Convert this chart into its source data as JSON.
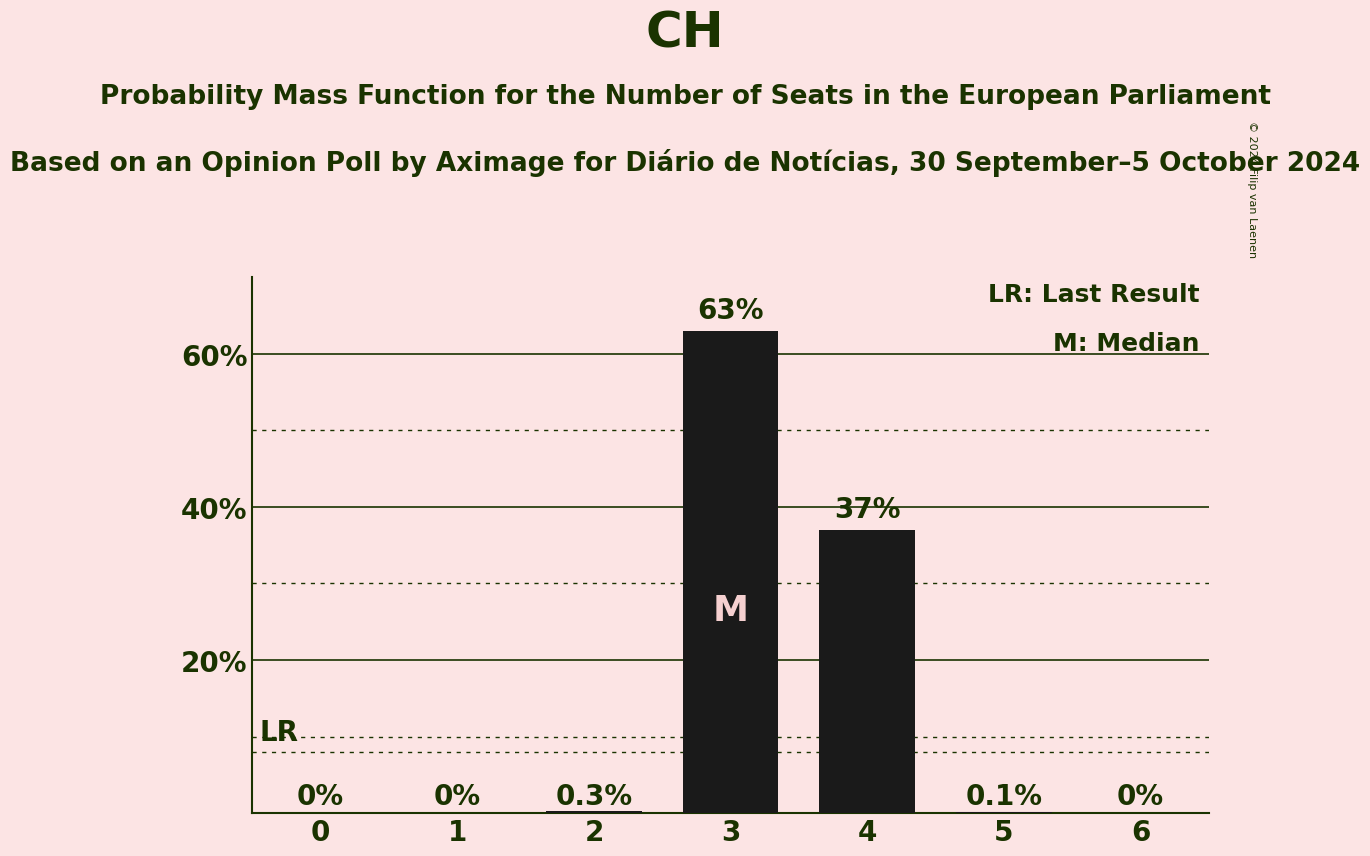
{
  "title": "CH",
  "subtitle1": "Probability Mass Function for the Number of Seats in the European Parliament",
  "subtitle2": "Based on an Opinion Poll by Aximage for Diário de Notícias, 30 September–5 October 2024",
  "copyright": "© 2024 Filip van Laenen",
  "categories": [
    0,
    1,
    2,
    3,
    4,
    5,
    6
  ],
  "values": [
    0.0,
    0.0,
    0.003,
    0.63,
    0.37,
    0.001,
    0.0
  ],
  "bar_color": "#1a1a1a",
  "bar_labels": [
    "0%",
    "0%",
    "0.3%",
    "63%",
    "37%",
    "0.1%",
    "0%"
  ],
  "median_seats": 3,
  "last_result_seats": 2,
  "background_color": "#fce4e4",
  "text_color": "#1a3300",
  "ylim": [
    0,
    0.7
  ],
  "yticks": [
    0.2,
    0.4,
    0.6
  ],
  "ytick_labels": [
    "20%",
    "40%",
    "60%"
  ],
  "dotted_levels": [
    0.1,
    0.3,
    0.5
  ],
  "solid_levels": [
    0.2,
    0.4,
    0.6
  ],
  "lr_level": 0.08,
  "title_fontsize": 36,
  "subtitle1_fontsize": 19,
  "subtitle2_fontsize": 19,
  "label_fontsize": 20,
  "tick_fontsize": 20,
  "legend_fontsize": 18,
  "median_label_fontsize": 26,
  "bar_label_fontsize": 20
}
